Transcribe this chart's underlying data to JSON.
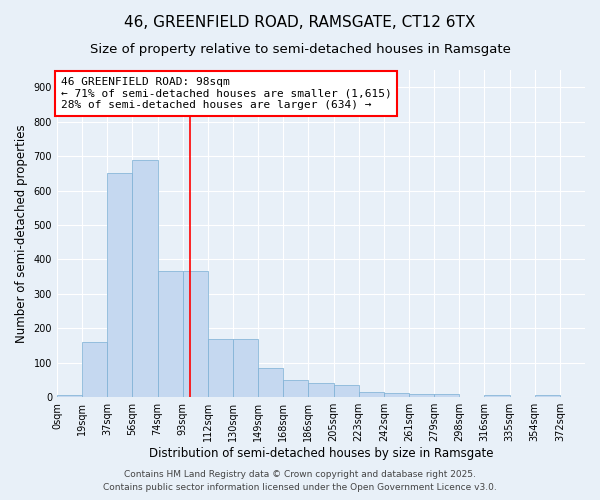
{
  "title": "46, GREENFIELD ROAD, RAMSGATE, CT12 6TX",
  "subtitle": "Size of property relative to semi-detached houses in Ramsgate",
  "xlabel": "Distribution of semi-detached houses by size in Ramsgate",
  "ylabel": "Number of semi-detached properties",
  "bar_color": "#c5d8f0",
  "bar_edge_color": "#7aafd4",
  "background_color": "#e8f0f8",
  "grid_color": "#ffffff",
  "categories": [
    "0sqm",
    "19sqm",
    "37sqm",
    "56sqm",
    "74sqm",
    "93sqm",
    "112sqm",
    "130sqm",
    "149sqm",
    "168sqm",
    "186sqm",
    "205sqm",
    "223sqm",
    "242sqm",
    "261sqm",
    "279sqm",
    "298sqm",
    "316sqm",
    "335sqm",
    "354sqm",
    "372sqm"
  ],
  "values": [
    5,
    160,
    650,
    690,
    365,
    365,
    170,
    170,
    85,
    50,
    40,
    35,
    15,
    12,
    10,
    10,
    0,
    5,
    0,
    5,
    0
  ],
  "ylim": [
    0,
    950
  ],
  "yticks": [
    0,
    100,
    200,
    300,
    400,
    500,
    600,
    700,
    800,
    900
  ],
  "property_label": "46 GREENFIELD ROAD: 98sqm",
  "annotation_line1": "← 71% of semi-detached houses are smaller (1,615)",
  "annotation_line2": "28% of semi-detached houses are larger (634) →",
  "footer1": "Contains HM Land Registry data © Crown copyright and database right 2025.",
  "footer2": "Contains public sector information licensed under the Open Government Licence v3.0.",
  "title_fontsize": 11,
  "subtitle_fontsize": 9.5,
  "axis_label_fontsize": 8.5,
  "tick_fontsize": 7,
  "annotation_fontsize": 8,
  "footer_fontsize": 6.5
}
